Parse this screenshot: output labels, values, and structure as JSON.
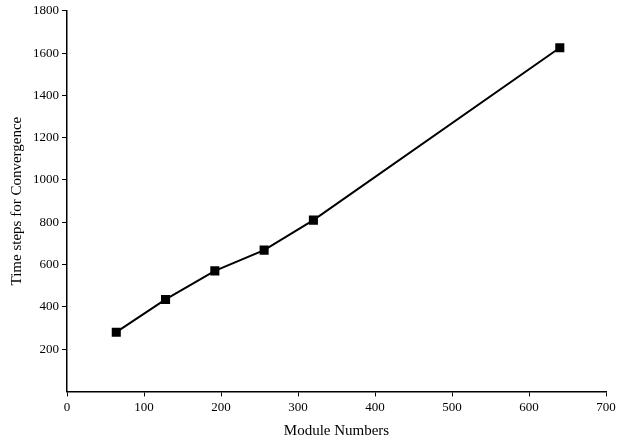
{
  "chart_data": {
    "type": "line",
    "x_label": "Module Numbers",
    "y_label": "Time steps for Convergence",
    "x": [
      64,
      128,
      192,
      256,
      320,
      640
    ],
    "values": [
      280,
      435,
      570,
      668,
      810,
      1625
    ],
    "color": "#000000",
    "marker": "square",
    "xlim": [
      0,
      700
    ],
    "xticks": [
      0,
      100,
      200,
      300,
      400,
      500,
      600,
      700
    ],
    "ylim": [
      0,
      1800
    ],
    "yticks": [
      200,
      400,
      600,
      800,
      1000,
      1200,
      1400,
      1600,
      1800
    ],
    "grid": false
  }
}
